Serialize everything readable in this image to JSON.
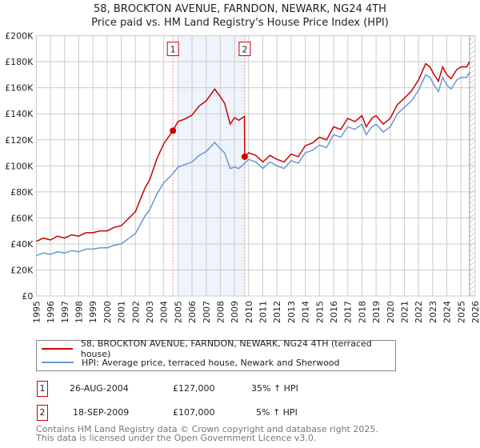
{
  "chart_data": {
    "type": "line",
    "title": "58, BROCKTON AVENUE, FARNDON, NEWARK, NG24 4TH",
    "subtitle": "Price paid vs. HM Land Registry's House Price Index (HPI)",
    "xlim": [
      1995,
      2026
    ],
    "ylim": [
      0,
      200000
    ],
    "x_ticks": [
      "1995",
      "1996",
      "1997",
      "1998",
      "1999",
      "2000",
      "2001",
      "2002",
      "2003",
      "2004",
      "2005",
      "2006",
      "2007",
      "2008",
      "2009",
      "2010",
      "2011",
      "2012",
      "2013",
      "2014",
      "2015",
      "2016",
      "2017",
      "2018",
      "2019",
      "2020",
      "2021",
      "2022",
      "2023",
      "2024",
      "2025",
      "2026"
    ],
    "y_ticks": [
      {
        "v": 0,
        "label": "£0"
      },
      {
        "v": 20000,
        "label": "£20K"
      },
      {
        "v": 40000,
        "label": "£40K"
      },
      {
        "v": 60000,
        "label": "£60K"
      },
      {
        "v": 80000,
        "label": "£80K"
      },
      {
        "v": 100000,
        "label": "£100K"
      },
      {
        "v": 120000,
        "label": "£120K"
      },
      {
        "v": 140000,
        "label": "£140K"
      },
      {
        "v": 160000,
        "label": "£160K"
      },
      {
        "v": 180000,
        "label": "£180K"
      },
      {
        "v": 200000,
        "label": "£200K"
      }
    ],
    "grid": true,
    "shaded_range": [
      2005.0,
      2009.72
    ],
    "data_end": 2025.6,
    "series": [
      {
        "name": "58, BROCKTON AVENUE, FARNDON, NEWARK, NG24 4TH (terraced house)",
        "color": "#cc0000",
        "points": [
          [
            1995,
            42000
          ],
          [
            1995.5,
            44500
          ],
          [
            1996,
            43000
          ],
          [
            1996.5,
            46000
          ],
          [
            1997,
            44500
          ],
          [
            1997.5,
            47000
          ],
          [
            1998,
            46000
          ],
          [
            1998.5,
            48600
          ],
          [
            1999,
            48600
          ],
          [
            1999.5,
            50000
          ],
          [
            2000,
            50000
          ],
          [
            2000.5,
            52700
          ],
          [
            2001,
            54000
          ],
          [
            2001.5,
            59400
          ],
          [
            2002,
            64800
          ],
          [
            2002.3,
            73000
          ],
          [
            2002.7,
            83700
          ],
          [
            2003,
            89000
          ],
          [
            2003.5,
            105000
          ],
          [
            2004,
            117000
          ],
          [
            2004.65,
            127000
          ],
          [
            2005,
            134000
          ],
          [
            2005.5,
            136000
          ],
          [
            2006,
            139000
          ],
          [
            2006.5,
            146000
          ],
          [
            2007,
            150000
          ],
          [
            2007.6,
            159000
          ],
          [
            2008,
            153000
          ],
          [
            2008.3,
            148000
          ],
          [
            2008.7,
            132000
          ],
          [
            2009,
            137000
          ],
          [
            2009.3,
            135000
          ],
          [
            2009.7,
            138000
          ],
          [
            2009.72,
            107000
          ],
          [
            2010,
            110000
          ],
          [
            2010.5,
            108000
          ],
          [
            2011,
            103000
          ],
          [
            2011.5,
            108000
          ],
          [
            2012,
            105000
          ],
          [
            2012.5,
            103000
          ],
          [
            2013,
            109000
          ],
          [
            2013.5,
            107000
          ],
          [
            2014,
            115500
          ],
          [
            2014.5,
            117600
          ],
          [
            2015,
            122000
          ],
          [
            2015.5,
            120000
          ],
          [
            2016,
            130000
          ],
          [
            2016.5,
            128000
          ],
          [
            2017,
            136500
          ],
          [
            2017.5,
            134000
          ],
          [
            2018,
            138600
          ],
          [
            2018.3,
            130000
          ],
          [
            2018.7,
            136500
          ],
          [
            2019,
            138600
          ],
          [
            2019.5,
            132000
          ],
          [
            2020,
            136500
          ],
          [
            2020.5,
            147000
          ],
          [
            2021,
            152000
          ],
          [
            2021.5,
            157500
          ],
          [
            2022,
            166000
          ],
          [
            2022.5,
            178500
          ],
          [
            2022.8,
            176000
          ],
          [
            2023.1,
            170000
          ],
          [
            2023.4,
            165000
          ],
          [
            2023.7,
            176000
          ],
          [
            2024,
            170000
          ],
          [
            2024.3,
            167000
          ],
          [
            2024.7,
            174000
          ],
          [
            2025,
            176000
          ],
          [
            2025.4,
            176000
          ],
          [
            2025.6,
            180000
          ]
        ]
      },
      {
        "name": "HPI: Average price, terraced house, Newark and Sherwood",
        "color": "#6a98d0",
        "points": [
          [
            1995,
            31000
          ],
          [
            1995.5,
            33000
          ],
          [
            1996,
            32000
          ],
          [
            1996.5,
            34000
          ],
          [
            1997,
            33000
          ],
          [
            1997.5,
            35000
          ],
          [
            1998,
            34000
          ],
          [
            1998.5,
            36000
          ],
          [
            1999,
            36000
          ],
          [
            1999.5,
            37000
          ],
          [
            2000,
            37000
          ],
          [
            2000.5,
            39000
          ],
          [
            2001,
            40000
          ],
          [
            2001.5,
            44000
          ],
          [
            2002,
            48000
          ],
          [
            2002.3,
            54000
          ],
          [
            2002.7,
            62000
          ],
          [
            2003,
            66000
          ],
          [
            2003.5,
            78000
          ],
          [
            2004,
            87000
          ],
          [
            2004.65,
            94000
          ],
          [
            2005,
            99000
          ],
          [
            2005.5,
            101000
          ],
          [
            2006,
            103000
          ],
          [
            2006.5,
            108000
          ],
          [
            2007,
            111000
          ],
          [
            2007.6,
            118000
          ],
          [
            2008,
            113000
          ],
          [
            2008.3,
            110000
          ],
          [
            2008.7,
            98000
          ],
          [
            2009,
            99000
          ],
          [
            2009.3,
            98000
          ],
          [
            2009.72,
            102000
          ],
          [
            2010,
            105000
          ],
          [
            2010.5,
            103000
          ],
          [
            2011,
            98000
          ],
          [
            2011.5,
            103000
          ],
          [
            2012,
            100000
          ],
          [
            2012.5,
            98000
          ],
          [
            2013,
            104000
          ],
          [
            2013.5,
            102000
          ],
          [
            2014,
            110000
          ],
          [
            2014.5,
            112000
          ],
          [
            2015,
            116000
          ],
          [
            2015.5,
            114000
          ],
          [
            2016,
            124000
          ],
          [
            2016.5,
            122000
          ],
          [
            2017,
            130000
          ],
          [
            2017.5,
            128000
          ],
          [
            2018,
            132000
          ],
          [
            2018.3,
            124000
          ],
          [
            2018.7,
            130000
          ],
          [
            2019,
            132000
          ],
          [
            2019.5,
            126000
          ],
          [
            2020,
            130000
          ],
          [
            2020.5,
            140000
          ],
          [
            2021,
            145000
          ],
          [
            2021.5,
            150000
          ],
          [
            2022,
            158000
          ],
          [
            2022.5,
            170000
          ],
          [
            2022.8,
            168000
          ],
          [
            2023.1,
            162000
          ],
          [
            2023.4,
            157000
          ],
          [
            2023.7,
            168000
          ],
          [
            2024,
            162000
          ],
          [
            2024.3,
            159000
          ],
          [
            2024.7,
            166000
          ],
          [
            2025,
            168000
          ],
          [
            2025.4,
            168000
          ],
          [
            2025.6,
            172000
          ]
        ]
      }
    ],
    "sales": [
      {
        "label": "1",
        "date": "26-AUG-2004",
        "x": 2004.65,
        "price": 127000,
        "price_label": "£127,000",
        "hpi": "35% ↑ HPI"
      },
      {
        "label": "2",
        "date": "18-SEP-2009",
        "x": 2009.72,
        "price": 107000,
        "price_label": "£107,000",
        "hpi": "5% ↑ HPI"
      }
    ]
  },
  "footer": {
    "line1": "Contains HM Land Registry data © Crown copyright and database right 2025.",
    "line2": "This data is licensed under the Open Government Licence v3.0."
  }
}
